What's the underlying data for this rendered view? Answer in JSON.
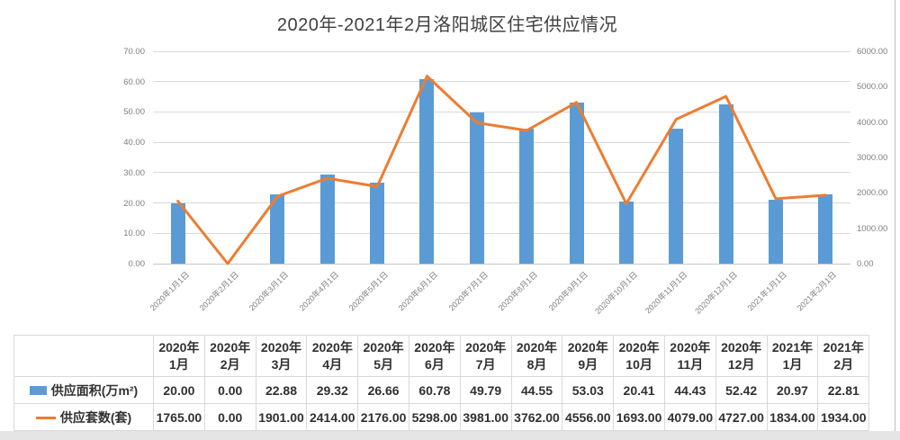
{
  "title": "2020年-2021年2月洛阳城区住宅供应情况",
  "colors": {
    "bar": "#5B9BD5",
    "line": "#ED7D31",
    "gridline": "#D9D9D9",
    "axis_text": "#7F7F7F",
    "title_text": "#404040",
    "table_border": "#D9D9D9",
    "table_text": "#303030"
  },
  "chart_data": {
    "type": "combo-bar-line",
    "title": "2020年-2021年2月洛阳城区住宅供应情况",
    "x_labels": [
      "2020年1月1日",
      "2020年2月1日",
      "2020年3月1日",
      "2020年4月1日",
      "2020年5月1日",
      "2020年6月1日",
      "2020年7月1日",
      "2020年8月1日",
      "2020年9月1日",
      "2020年10月1日",
      "2020年11月1日",
      "2020年12月1日",
      "2021年1月1日",
      "2021年2月1日"
    ],
    "series": [
      {
        "name": "供应面积(万m²)",
        "type": "bar",
        "axis": "left",
        "values": [
          20.0,
          0.0,
          22.88,
          29.32,
          26.66,
          60.78,
          49.79,
          44.55,
          53.03,
          20.41,
          44.43,
          52.42,
          20.97,
          22.81
        ]
      },
      {
        "name": "供应套数(套)",
        "type": "line",
        "axis": "right",
        "values": [
          1765,
          0,
          1901,
          2414,
          2176,
          5298,
          3981,
          3762,
          4556,
          1693,
          4079,
          4727,
          1834,
          1934
        ]
      }
    ],
    "left_axis": {
      "min": 0,
      "max": 70,
      "tick_labels": [
        "0.00",
        "10.00",
        "20.00",
        "30.00",
        "40.00",
        "50.00",
        "60.00",
        "70.00"
      ]
    },
    "right_axis": {
      "min": 0,
      "max": 6000,
      "tick_labels": [
        "0.00",
        "1000.00",
        "2000.00",
        "3000.00",
        "4000.00",
        "5000.00",
        "6000.00"
      ]
    },
    "grid": "horizontal-only",
    "legend_position": "table-rows-left"
  },
  "table": {
    "col_headers": [
      {
        "line1": "2020年",
        "line2": "1月"
      },
      {
        "line1": "2020年",
        "line2": "2月"
      },
      {
        "line1": "2020年",
        "line2": "3月"
      },
      {
        "line1": "2020年",
        "line2": "4月"
      },
      {
        "line1": "2020年",
        "line2": "5月"
      },
      {
        "line1": "2020年",
        "line2": "6月"
      },
      {
        "line1": "2020年",
        "line2": "7月"
      },
      {
        "line1": "2020年",
        "line2": "8月"
      },
      {
        "line1": "2020年",
        "line2": "9月"
      },
      {
        "line1": "2020年",
        "line2": "10月"
      },
      {
        "line1": "2020年",
        "line2": "11月"
      },
      {
        "line1": "2020年",
        "line2": "12月"
      },
      {
        "line1": "2021年",
        "line2": "1月"
      },
      {
        "line1": "2021年",
        "line2": "2月"
      }
    ],
    "rows": [
      {
        "label": "供应面积(万m²)",
        "swatch": "bar",
        "values": [
          "20.00",
          "0.00",
          "22.88",
          "29.32",
          "26.66",
          "60.78",
          "49.79",
          "44.55",
          "53.03",
          "20.41",
          "44.43",
          "52.42",
          "20.97",
          "22.81"
        ]
      },
      {
        "label": "供应套数(套)",
        "swatch": "line",
        "values": [
          "1765.00",
          "0.00",
          "1901.00",
          "2414.00",
          "2176.00",
          "5298.00",
          "3981.00",
          "3762.00",
          "4556.00",
          "1693.00",
          "4079.00",
          "4727.00",
          "1834.00",
          "1934.00"
        ]
      }
    ]
  }
}
